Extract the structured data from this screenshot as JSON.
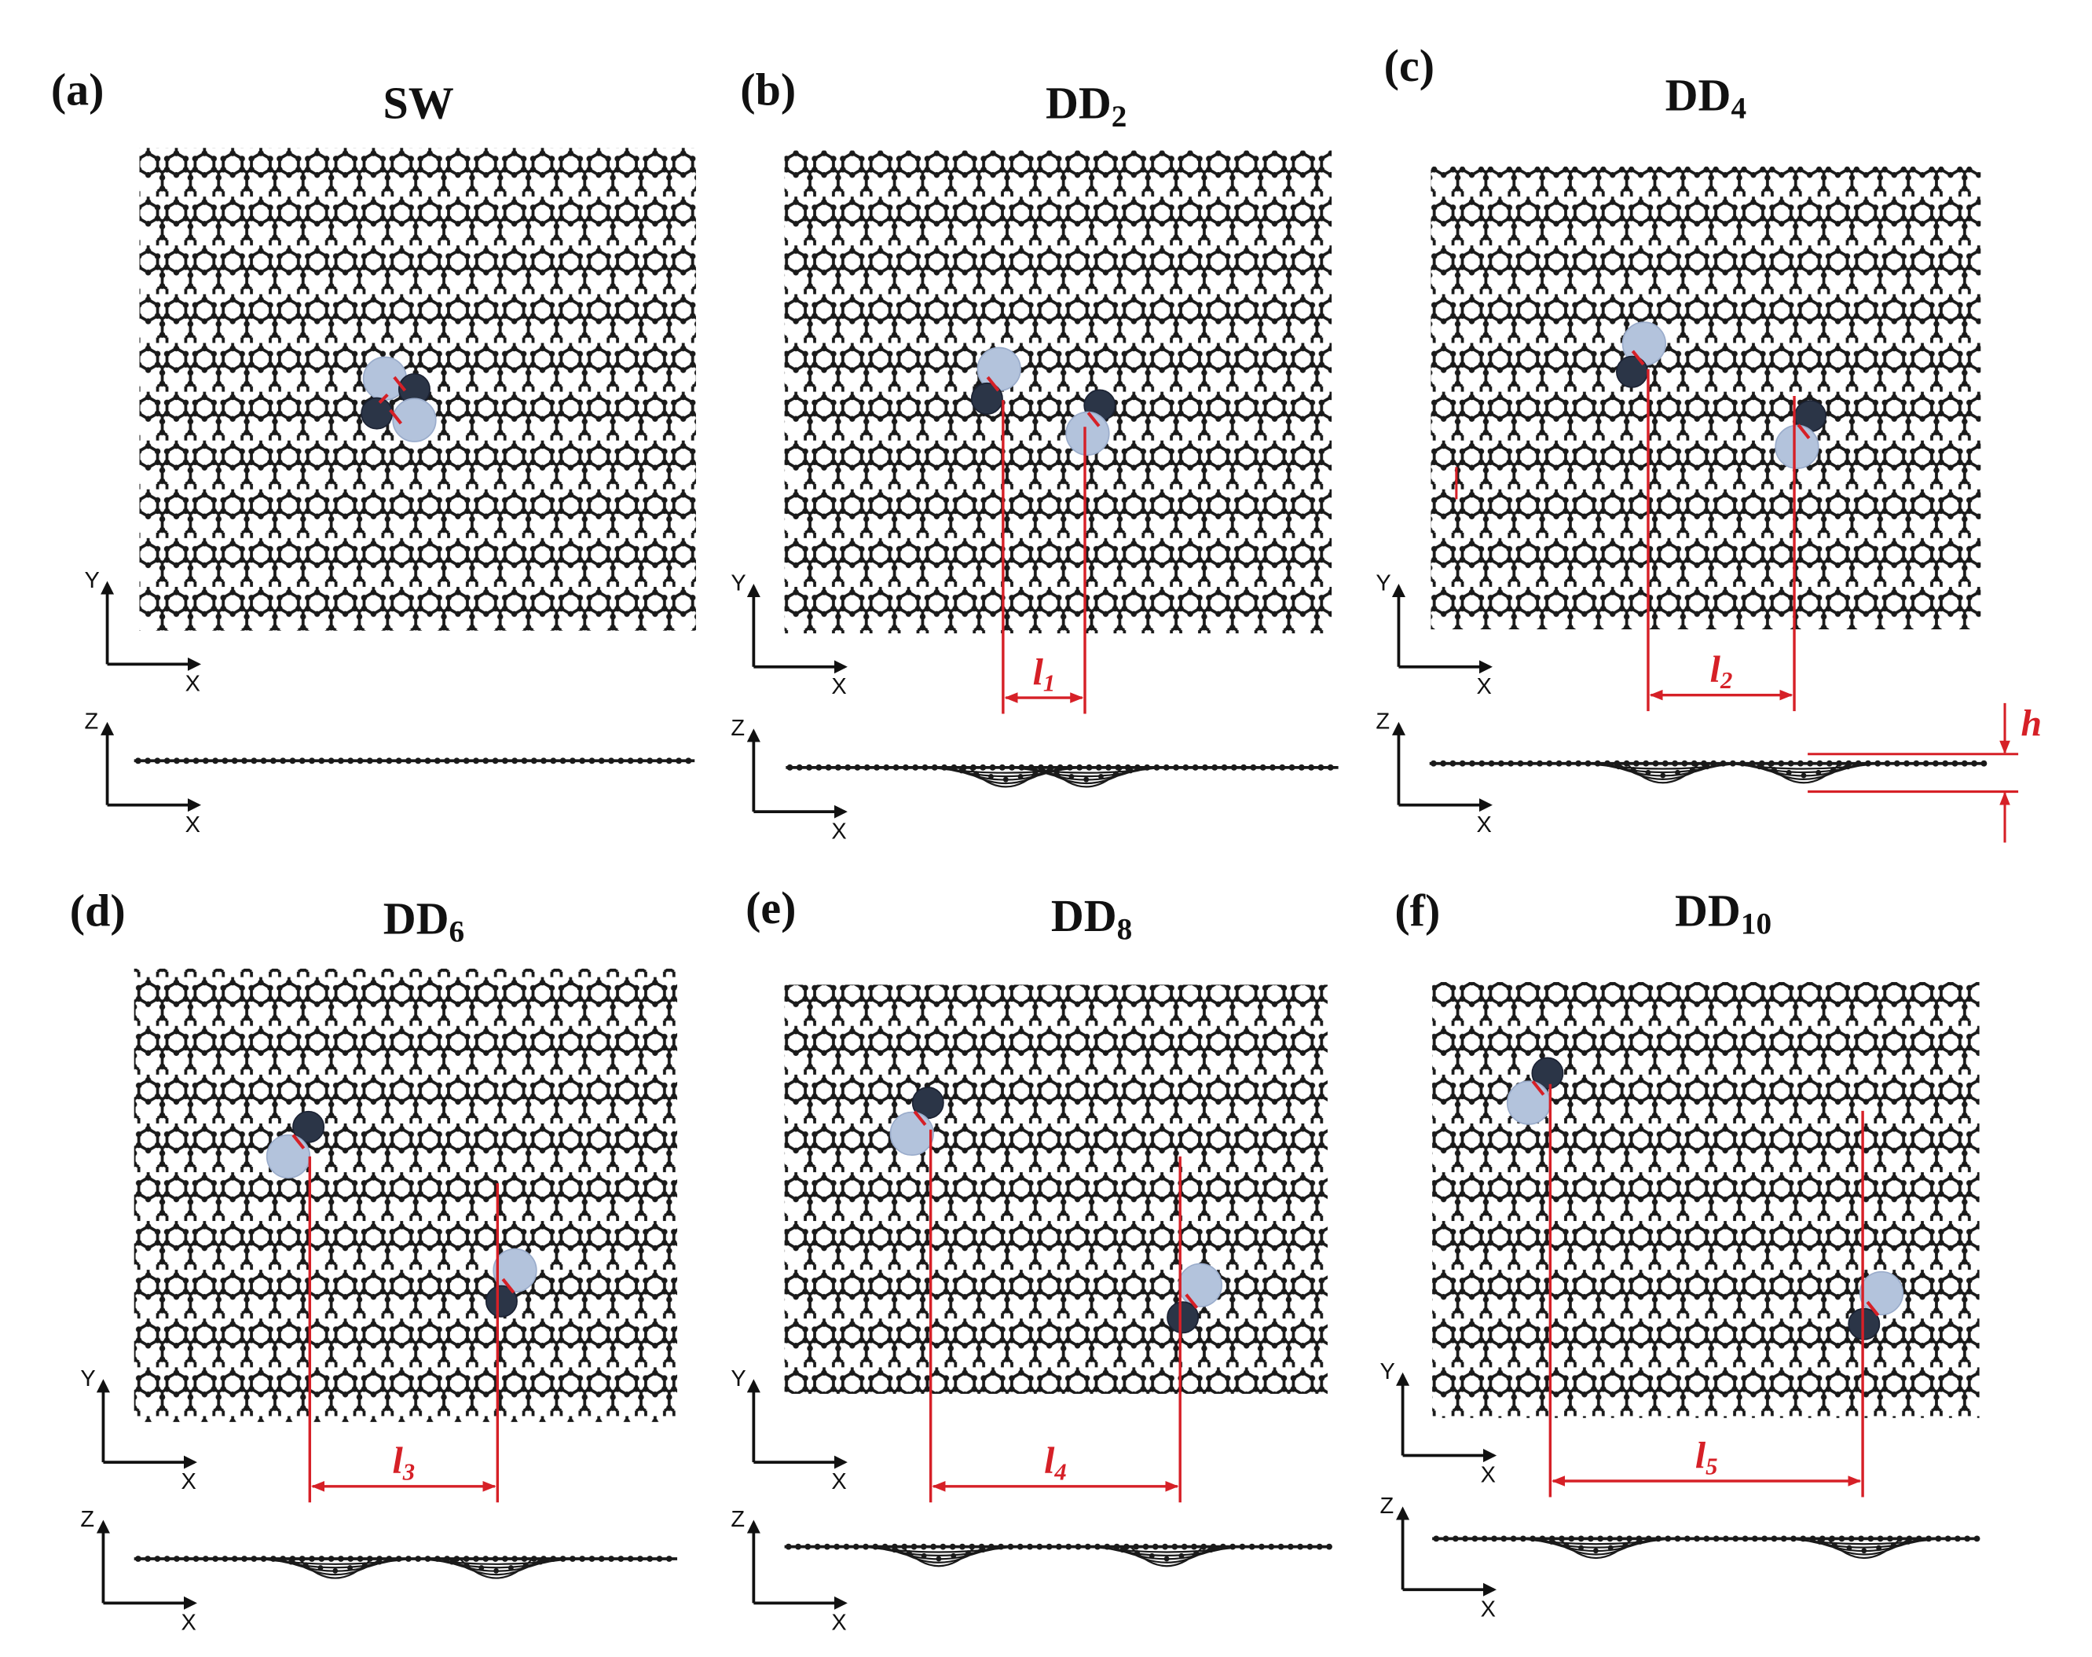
{
  "figure": {
    "panels": [
      {
        "id": "a",
        "label": "(a)",
        "title": "SW",
        "sub": "",
        "distance_label": "",
        "distance_sub": "",
        "height_label": ""
      },
      {
        "id": "b",
        "label": "(b)",
        "title": "DD",
        "sub": "2",
        "distance_label": "l",
        "distance_sub": "1",
        "height_label": ""
      },
      {
        "id": "c",
        "label": "(c)",
        "title": "DD",
        "sub": "4",
        "distance_label": "l",
        "distance_sub": "2",
        "height_label": "h"
      },
      {
        "id": "d",
        "label": "(d)",
        "title": "DD",
        "sub": "6",
        "distance_label": "l",
        "distance_sub": "3",
        "height_label": ""
      },
      {
        "id": "e",
        "label": "(e)",
        "title": "DD",
        "sub": "8",
        "distance_label": "l",
        "distance_sub": "4",
        "height_label": ""
      },
      {
        "id": "f",
        "label": "(f)",
        "title": "DD",
        "sub": "10",
        "distance_label": "l",
        "distance_sub": "5",
        "height_label": ""
      }
    ],
    "axes": {
      "top_view": [
        "Y",
        "X"
      ],
      "side_view": [
        "Z",
        "X"
      ]
    },
    "colors": {
      "lattice": "#1a1a1a",
      "defect_atom_dark": "#2b3547",
      "defect_atom_light": "#b3c3dc",
      "annotation": "#d62027"
    }
  }
}
